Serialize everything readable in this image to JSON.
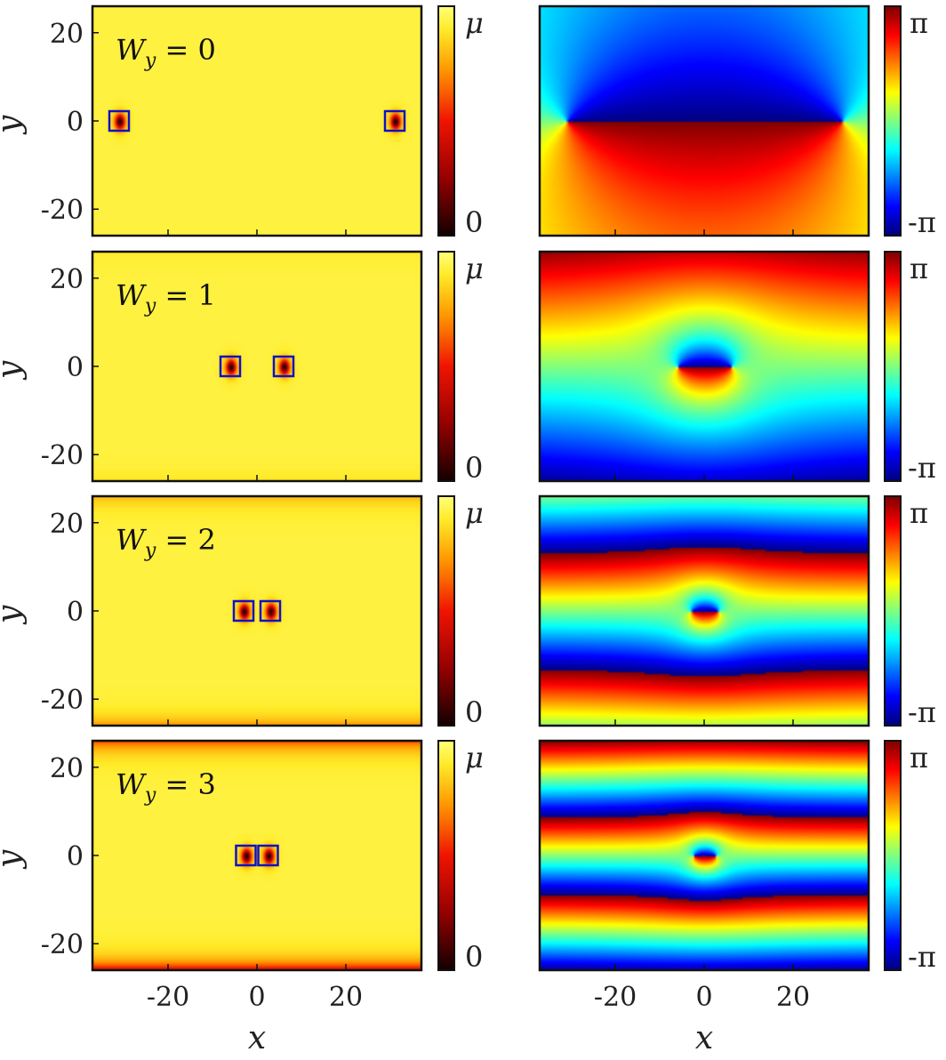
{
  "chart_data": {
    "type": "heatmap",
    "figure_layout": "4 rows x 2 columns",
    "xlabel": "x",
    "ylabel": "y",
    "xlim": [
      -37,
      37
    ],
    "ylim": [
      -26,
      26
    ],
    "xticks": [
      -20,
      0,
      20
    ],
    "yticks": [
      20,
      0,
      -20
    ],
    "x_tick_labels": [
      "-20",
      "0",
      "20"
    ],
    "y_tick_labels": [
      "20",
      "0",
      "-20"
    ],
    "density_colormap": "hot-to-yellow",
    "phase_colormap": "jet",
    "density_colorbar": {
      "max_label": "μ",
      "min_label": "0"
    },
    "phase_colorbar": {
      "max_label": "π",
      "min_label": "-π"
    },
    "box_color": "#1010c8",
    "rows": [
      {
        "label_sub": "y",
        "label_value": "W  = 0",
        "Wy": 0,
        "vortex_x": [
          -31,
          31
        ],
        "vortex_y": 0,
        "edge_depletion": 0.0
      },
      {
        "label_sub": "y",
        "label_value": "W  = 1",
        "Wy": 1,
        "vortex_x": [
          -6,
          6
        ],
        "vortex_y": 0,
        "edge_depletion": 0.05
      },
      {
        "label_sub": "y",
        "label_value": "W  = 2",
        "Wy": 2,
        "vortex_x": [
          -3,
          3
        ],
        "vortex_y": 0,
        "edge_depletion": 0.25
      },
      {
        "label_sub": "y",
        "label_value": "W  = 3",
        "Wy": 3,
        "vortex_x": [
          -2.5,
          2.5
        ],
        "vortex_y": 0,
        "edge_depletion": 0.6
      }
    ]
  }
}
